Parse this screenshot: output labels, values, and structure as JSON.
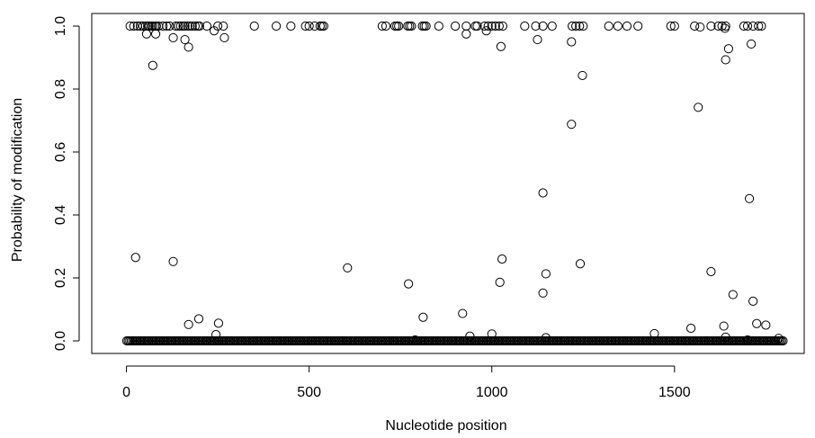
{
  "chart_data": {
    "type": "scatter",
    "title": "",
    "xlabel": "Nucleotide position",
    "ylabel": "Probability of modification",
    "xlim": [
      -95,
      1855
    ],
    "ylim": [
      -0.04,
      1.04
    ],
    "x_ticks": [
      0,
      500,
      1000,
      1500
    ],
    "x_tick_labels": [
      "0",
      "500",
      "1000",
      "1500"
    ],
    "y_ticks": [
      0.0,
      0.2,
      0.4,
      0.6,
      0.8,
      1.0
    ],
    "y_tick_labels": [
      "0.0",
      "0.2",
      "0.4",
      "0.6",
      "0.8",
      "1.0"
    ],
    "grid": false,
    "legend": "none",
    "marker": "open-circle",
    "baseline_points": {
      "x_start": 1,
      "x_end": 1800,
      "step": 4,
      "y": 0.0
    },
    "points": [
      [
        10,
        1.0
      ],
      [
        20,
        1.0
      ],
      [
        30,
        1.0
      ],
      [
        38,
        1.0
      ],
      [
        45,
        1.0
      ],
      [
        52,
        1.0
      ],
      [
        58,
        1.0
      ],
      [
        62,
        1.0
      ],
      [
        68,
        1.0
      ],
      [
        72,
        1.0
      ],
      [
        78,
        1.0
      ],
      [
        82,
        1.0
      ],
      [
        88,
        1.0
      ],
      [
        100,
        1.0
      ],
      [
        110,
        1.0
      ],
      [
        118,
        1.0
      ],
      [
        135,
        1.0
      ],
      [
        142,
        1.0
      ],
      [
        148,
        1.0
      ],
      [
        155,
        1.0
      ],
      [
        160,
        1.0
      ],
      [
        168,
        1.0
      ],
      [
        174,
        1.0
      ],
      [
        180,
        1.0
      ],
      [
        188,
        1.0
      ],
      [
        195,
        1.0
      ],
      [
        200,
        1.0
      ],
      [
        220,
        1.0
      ],
      [
        250,
        1.0
      ],
      [
        265,
        1.0
      ],
      [
        350,
        1.0
      ],
      [
        410,
        1.0
      ],
      [
        450,
        1.0
      ],
      [
        490,
        1.0
      ],
      [
        500,
        1.0
      ],
      [
        515,
        1.0
      ],
      [
        530,
        1.0
      ],
      [
        535,
        1.0
      ],
      [
        540,
        1.0
      ],
      [
        700,
        1.0
      ],
      [
        710,
        1.0
      ],
      [
        735,
        1.0
      ],
      [
        740,
        1.0
      ],
      [
        745,
        1.0
      ],
      [
        770,
        1.0
      ],
      [
        775,
        1.0
      ],
      [
        780,
        1.0
      ],
      [
        810,
        1.0
      ],
      [
        815,
        1.0
      ],
      [
        820,
        1.0
      ],
      [
        855,
        1.0
      ],
      [
        900,
        1.0
      ],
      [
        930,
        1.0
      ],
      [
        955,
        1.0
      ],
      [
        960,
        1.0
      ],
      [
        980,
        1.0
      ],
      [
        990,
        1.0
      ],
      [
        1000,
        1.0
      ],
      [
        1010,
        1.0
      ],
      [
        1020,
        1.0
      ],
      [
        1030,
        1.0
      ],
      [
        1090,
        1.0
      ],
      [
        1120,
        1.0
      ],
      [
        1140,
        1.0
      ],
      [
        1165,
        1.0
      ],
      [
        1220,
        1.0
      ],
      [
        1230,
        1.0
      ],
      [
        1240,
        1.0
      ],
      [
        1250,
        1.0
      ],
      [
        1320,
        1.0
      ],
      [
        1345,
        1.0
      ],
      [
        1370,
        1.0
      ],
      [
        1400,
        1.0
      ],
      [
        1490,
        1.0
      ],
      [
        1500,
        1.0
      ],
      [
        1555,
        1.0
      ],
      [
        1600,
        1.0
      ],
      [
        1620,
        1.0
      ],
      [
        1630,
        1.0
      ],
      [
        1640,
        1.0
      ],
      [
        1690,
        1.0
      ],
      [
        1700,
        1.0
      ],
      [
        1715,
        1.0
      ],
      [
        1730,
        1.0
      ],
      [
        1738,
        1.0
      ],
      [
        55,
        0.975
      ],
      [
        80,
        0.975
      ],
      [
        160,
        0.957
      ],
      [
        128,
        0.963
      ],
      [
        170,
        0.933
      ],
      [
        240,
        0.985
      ],
      [
        268,
        0.963
      ],
      [
        72,
        0.875
      ],
      [
        930,
        0.975
      ],
      [
        985,
        0.985
      ],
      [
        1025,
        0.935
      ],
      [
        1125,
        0.957
      ],
      [
        1218,
        0.95
      ],
      [
        1248,
        0.843
      ],
      [
        1640,
        0.893
      ],
      [
        1648,
        0.928
      ],
      [
        1710,
        0.943
      ],
      [
        1638,
        0.993
      ],
      [
        1570,
        0.997
      ],
      [
        1218,
        0.688
      ],
      [
        1565,
        0.742
      ],
      [
        1140,
        0.47
      ],
      [
        1705,
        0.452
      ],
      [
        25,
        0.265
      ],
      [
        128,
        0.252
      ],
      [
        605,
        0.232
      ],
      [
        1028,
        0.26
      ],
      [
        1148,
        0.213
      ],
      [
        1242,
        0.245
      ],
      [
        1600,
        0.22
      ],
      [
        772,
        0.181
      ],
      [
        1022,
        0.186
      ],
      [
        1140,
        0.152
      ],
      [
        1660,
        0.147
      ],
      [
        1715,
        0.126
      ],
      [
        170,
        0.052
      ],
      [
        198,
        0.07
      ],
      [
        252,
        0.056
      ],
      [
        812,
        0.075
      ],
      [
        920,
        0.087
      ],
      [
        1545,
        0.04
      ],
      [
        1635,
        0.047
      ],
      [
        1725,
        0.055
      ],
      [
        1750,
        0.05
      ],
      [
        245,
        0.02
      ],
      [
        940,
        0.015
      ],
      [
        1000,
        0.022
      ],
      [
        1148,
        0.01
      ],
      [
        1445,
        0.023
      ],
      [
        1640,
        0.012
      ],
      [
        790,
        0.003
      ],
      [
        1700,
        0.003
      ],
      [
        1785,
        0.008
      ]
    ]
  }
}
